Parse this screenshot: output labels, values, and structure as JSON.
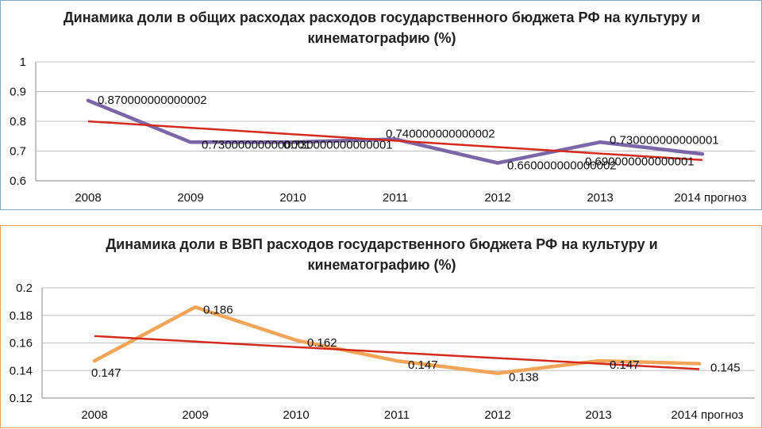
{
  "chart_data": [
    {
      "type": "line",
      "title": "Динамика доли в общих расходах расходов государственного бюджета РФ на культуру и кинематографию (%)",
      "categories": [
        "2008",
        "2009",
        "2010",
        "2011",
        "2012",
        "2013",
        "2014 прогноз"
      ],
      "series": [
        {
          "values": [
            0.87,
            0.73,
            0.73,
            0.74,
            0.66,
            0.73,
            0.69
          ],
          "color": "#7b66a8",
          "data_labels": [
            "0.870000000000002",
            "0.730000000000001",
            "0.730000000000001",
            "0.740000000000002",
            "0.660000000000002",
            "0.730000000000001",
            "0.690000000000001"
          ]
        }
      ],
      "trendline": {
        "start": 0.8,
        "end": 0.67,
        "color": "#d42a1e"
      },
      "yticks": [
        "0.6",
        "0.7",
        "0.8",
        "0.9",
        "1"
      ],
      "ylim": [
        0.6,
        1.0
      ],
      "grid": true,
      "legend": "none"
    },
    {
      "type": "line",
      "title": "Динамика доли в ВВП расходов государственного бюджета РФ на культуру и кинематографию (%)",
      "categories": [
        "2008",
        "2009",
        "2010",
        "2011",
        "2012",
        "2013",
        "2014 прогноз"
      ],
      "series": [
        {
          "values": [
            0.147,
            0.186,
            0.162,
            0.147,
            0.138,
            0.147,
            0.145
          ],
          "color": "#f0a55a",
          "data_labels": [
            "0.147",
            "0.186",
            "0.162",
            "0.147",
            "0.138",
            "0.147",
            "0.145"
          ]
        }
      ],
      "trendline": {
        "start": 0.165,
        "end": 0.141,
        "color": "#d42a1e"
      },
      "yticks": [
        "0.12",
        "0.14",
        "0.16",
        "0.18",
        "0.2"
      ],
      "ylim": [
        0.12,
        0.2
      ],
      "grid": true,
      "legend": "none"
    }
  ]
}
